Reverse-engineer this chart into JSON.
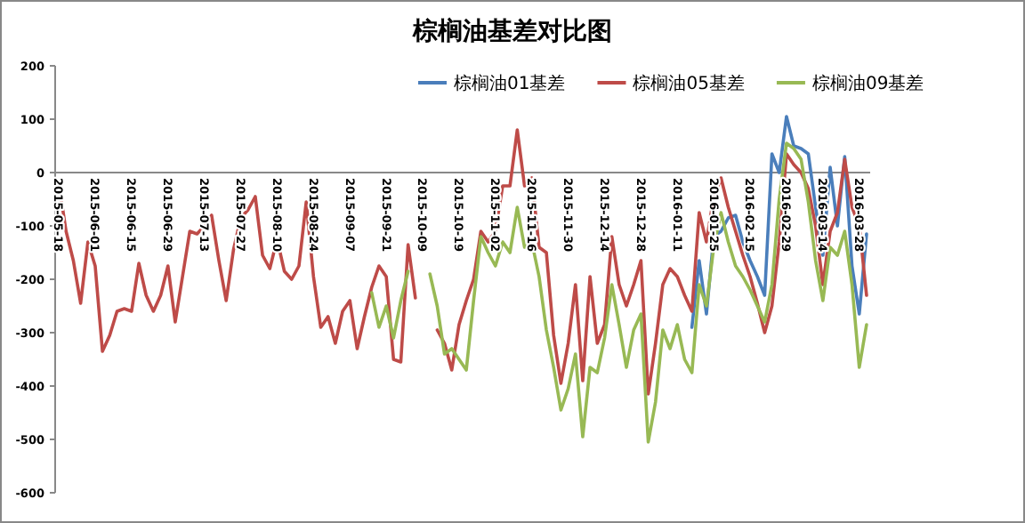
{
  "chart_data": {
    "type": "line",
    "title": "棕榈油基差对比图",
    "categories": [
      "2015-05-18",
      null,
      null,
      null,
      null,
      "2015-06-01",
      null,
      null,
      null,
      null,
      "2015-06-15",
      null,
      null,
      null,
      null,
      "2015-06-29",
      null,
      null,
      null,
      null,
      "2015-07-13",
      null,
      null,
      null,
      null,
      "2015-07-27",
      null,
      null,
      null,
      null,
      "2015-08-10",
      null,
      null,
      null,
      null,
      "2015-08-24",
      null,
      null,
      null,
      null,
      "2015-09-07",
      null,
      null,
      null,
      null,
      "2015-09-21",
      null,
      null,
      null,
      null,
      "2015-10-09",
      null,
      null,
      null,
      null,
      "2015-10-19",
      null,
      null,
      null,
      null,
      "2015-11-02",
      null,
      null,
      null,
      null,
      "2015-11-16",
      null,
      null,
      null,
      null,
      "2015-11-30",
      null,
      null,
      null,
      null,
      "2015-12-14",
      null,
      null,
      null,
      null,
      "2015-12-28",
      null,
      null,
      null,
      null,
      "2016-01-11",
      null,
      null,
      null,
      null,
      "2016-01-25",
      null,
      null,
      null,
      null,
      "2016-02-15",
      null,
      null,
      null,
      null,
      "2016-02-29",
      null,
      null,
      null,
      null,
      "2016-03-14",
      null,
      null,
      null,
      null,
      "2016-03-28",
      null
    ],
    "series": [
      {
        "name": "棕榈油01基差",
        "color": "#4a7ebb",
        "values": [
          null,
          null,
          null,
          null,
          null,
          null,
          null,
          null,
          null,
          null,
          null,
          null,
          null,
          null,
          null,
          null,
          null,
          null,
          null,
          null,
          null,
          null,
          null,
          null,
          null,
          null,
          null,
          null,
          null,
          null,
          null,
          null,
          null,
          null,
          null,
          null,
          null,
          null,
          null,
          null,
          null,
          null,
          null,
          null,
          null,
          null,
          null,
          null,
          null,
          null,
          null,
          null,
          null,
          null,
          null,
          null,
          null,
          null,
          null,
          null,
          null,
          null,
          null,
          null,
          null,
          null,
          null,
          null,
          null,
          null,
          null,
          null,
          null,
          null,
          null,
          null,
          null,
          null,
          null,
          null,
          null,
          null,
          null,
          null,
          null,
          null,
          null,
          -290,
          -165,
          -265,
          -120,
          -110,
          -85,
          -80,
          -130,
          -165,
          -195,
          -230,
          35,
          0,
          105,
          50,
          45,
          35,
          -65,
          -155,
          10,
          -100,
          30,
          -175,
          -265,
          -115
        ]
      },
      {
        "name": "棕榈油05基差",
        "color": "#be4b48",
        "values": [
          -20,
          -110,
          -165,
          -245,
          -130,
          -175,
          -335,
          -305,
          -260,
          -255,
          -260,
          -170,
          -230,
          -260,
          -230,
          -175,
          -280,
          -195,
          -110,
          -115,
          -100,
          -80,
          -165,
          -240,
          -145,
          -85,
          -70,
          -45,
          -155,
          -180,
          -125,
          -185,
          -200,
          -175,
          -55,
          -195,
          -290,
          -270,
          -320,
          -260,
          -240,
          -330,
          -270,
          -215,
          -175,
          -195,
          -350,
          -355,
          -135,
          -235,
          null,
          null,
          -295,
          -320,
          -370,
          -285,
          -240,
          -200,
          -110,
          -130,
          -110,
          -25,
          -25,
          80,
          -25,
          -10,
          -140,
          -150,
          -305,
          -395,
          -320,
          -210,
          -390,
          -195,
          -320,
          -285,
          -120,
          -210,
          -250,
          -210,
          -165,
          -415,
          -320,
          -210,
          -180,
          -195,
          -230,
          -260,
          -75,
          -130,
          -45,
          -10,
          -65,
          -110,
          -155,
          -195,
          -245,
          -300,
          -250,
          -130,
          35,
          15,
          0,
          -30,
          -100,
          -210,
          -110,
          -75,
          25,
          -65,
          -100,
          -230
        ]
      },
      {
        "name": "棕榈油09基差",
        "color": "#98b954",
        "values": [
          null,
          null,
          null,
          null,
          null,
          null,
          null,
          null,
          null,
          null,
          null,
          null,
          null,
          null,
          null,
          null,
          null,
          null,
          null,
          null,
          null,
          null,
          null,
          null,
          null,
          null,
          null,
          null,
          null,
          null,
          null,
          null,
          null,
          null,
          null,
          null,
          null,
          null,
          null,
          null,
          null,
          null,
          null,
          -225,
          -290,
          -250,
          -310,
          -240,
          -185,
          null,
          null,
          -190,
          -250,
          -340,
          -330,
          -350,
          -370,
          -240,
          -120,
          -150,
          -175,
          -130,
          -150,
          -65,
          -140,
          -130,
          -195,
          -295,
          -365,
          -445,
          -405,
          -340,
          -495,
          -365,
          -375,
          -310,
          -210,
          -285,
          -365,
          -295,
          -265,
          -505,
          -430,
          -295,
          -330,
          -285,
          -350,
          -375,
          -210,
          -250,
          -140,
          -75,
          -130,
          -175,
          -195,
          -220,
          -250,
          -280,
          -210,
          -50,
          55,
          45,
          25,
          -55,
          -165,
          -240,
          -140,
          -155,
          -110,
          -210,
          -365,
          -285
        ]
      }
    ],
    "ylim": [
      -600,
      200
    ],
    "yticks": [
      -600,
      -500,
      -400,
      -300,
      -200,
      -100,
      0,
      100,
      200
    ],
    "legend": "top",
    "line_style": "solid",
    "marker": "none"
  }
}
